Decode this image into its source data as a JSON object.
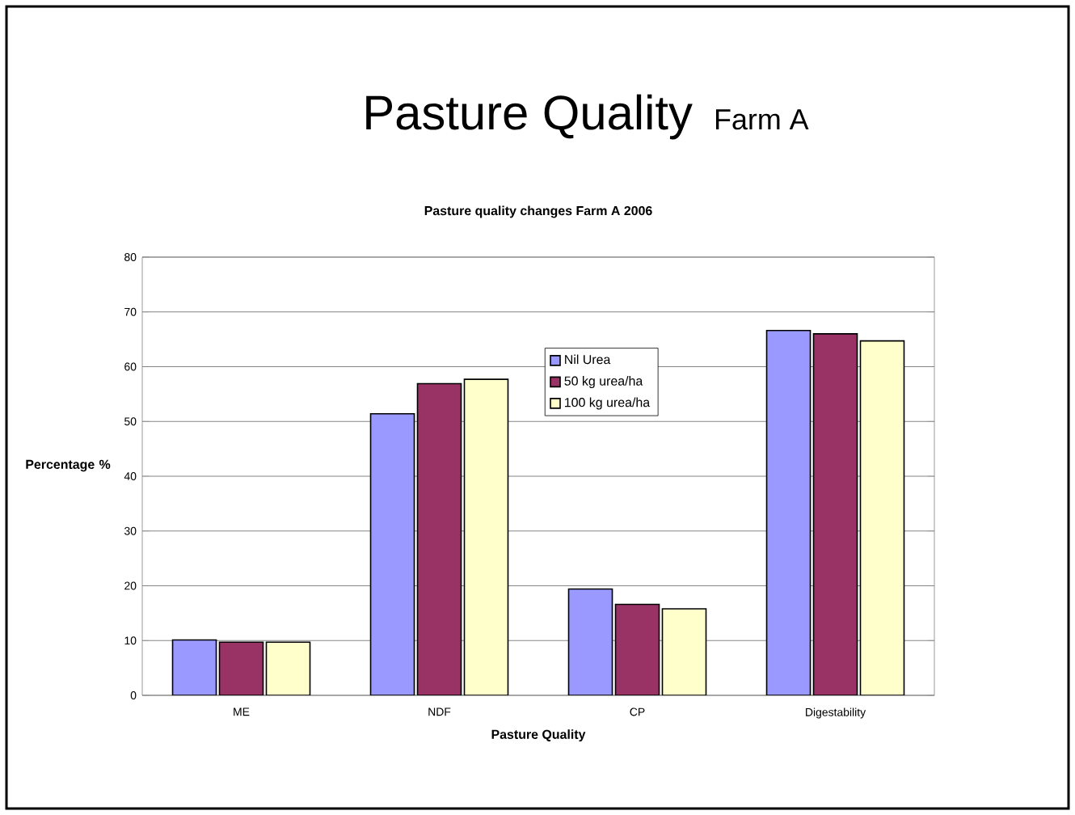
{
  "chart_data": {
    "type": "bar",
    "title": "Pasture Quality",
    "subtitle": "Pasture quality changes Farm A 2006",
    "annotations": [
      "Farm A"
    ],
    "xlabel": "Pasture Quality",
    "ylabel": "Percentage %",
    "categories": [
      "ME",
      "NDF",
      "CP",
      "Digestability"
    ],
    "series": [
      {
        "name": "Nil Urea",
        "color": "#9999ff",
        "values": [
          10.1,
          51.4,
          19.4,
          66.6
        ]
      },
      {
        "name": "50 kg urea/ha",
        "color": "#993366",
        "values": [
          9.7,
          56.9,
          16.6,
          66.0
        ]
      },
      {
        "name": "100 kg urea/ha",
        "color": "#ffffcc",
        "values": [
          9.7,
          57.7,
          15.8,
          64.7
        ]
      }
    ],
    "ylim": [
      0,
      80
    ],
    "yticks": [
      0,
      10,
      20,
      30,
      40,
      50,
      60,
      70,
      80
    ],
    "grid": "y",
    "legend": "top"
  }
}
